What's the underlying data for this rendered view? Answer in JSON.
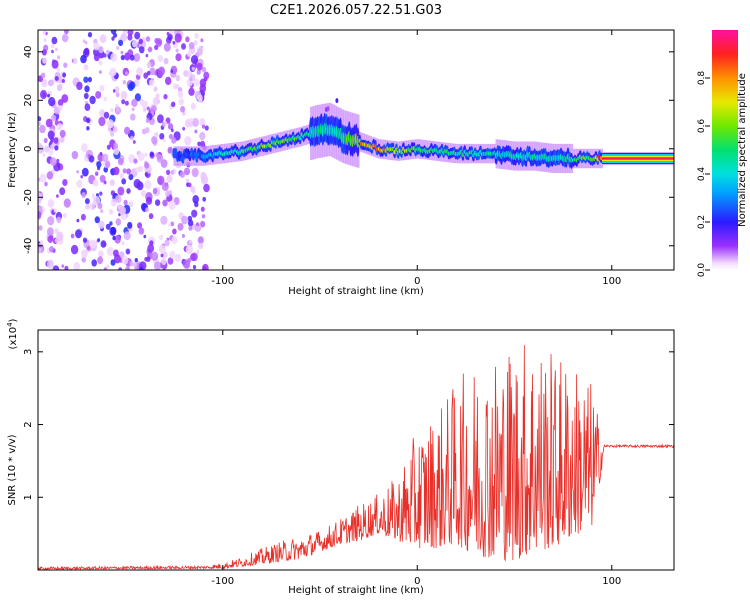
{
  "title": "C2E1.2026.057.22.51.G03",
  "chart_data": [
    {
      "type": "heatmap",
      "panel": "spectrogram",
      "xlabel": "Height of straight line (km)",
      "ylabel": "Frequency (Hz)",
      "xlim": [
        -195,
        132
      ],
      "ylim": [
        -50,
        49
      ],
      "xticks": [
        {
          "value": -100,
          "label": "-100"
        },
        {
          "value": 0,
          "label": "0"
        },
        {
          "value": 100,
          "label": "100"
        }
      ],
      "yticks": [
        {
          "value": -40,
          "label": "-40"
        },
        {
          "value": -20,
          "label": "-20"
        },
        {
          "value": 0,
          "label": "0"
        },
        {
          "value": 20,
          "label": "20"
        },
        {
          "value": 40,
          "label": "40"
        }
      ],
      "noise_region_x": [
        -195,
        -108
      ],
      "signal_region_x": [
        -125,
        95
      ],
      "clean_tone_region_x": [
        95,
        132
      ],
      "ridge": {
        "x": [
          -125,
          -110,
          -100,
          -90,
          -80,
          -70,
          -60,
          -52,
          -45,
          -38,
          -30,
          -20,
          -10,
          0,
          10,
          20,
          30,
          40,
          50,
          60,
          70,
          80,
          90,
          95,
          132
        ],
        "freq": [
          -3,
          -3,
          -2,
          -1,
          1,
          3,
          5,
          7,
          8,
          5,
          3,
          0,
          -1,
          0,
          -1,
          -2,
          -2,
          -2,
          -3,
          -3,
          -4,
          -4,
          -4,
          -4,
          -4
        ],
        "amplitude": [
          0.25,
          0.3,
          0.45,
          0.55,
          0.6,
          0.6,
          0.55,
          0.5,
          0.45,
          0.6,
          0.75,
          0.85,
          0.7,
          0.6,
          0.55,
          0.5,
          0.5,
          0.45,
          0.45,
          0.45,
          0.45,
          0.5,
          0.6,
          0.95,
          0.95
        ]
      },
      "colorbar": {
        "label": "Normalized spectral amplitude",
        "range": [
          0,
          1
        ],
        "ticks": [
          {
            "value": 0.0,
            "label": "0.0"
          },
          {
            "value": 0.2,
            "label": "0.2"
          },
          {
            "value": 0.4,
            "label": "0.4"
          },
          {
            "value": 0.6,
            "label": "0.6"
          },
          {
            "value": 0.8,
            "label": "0.8"
          }
        ]
      }
    },
    {
      "type": "line",
      "panel": "snr",
      "xlabel": "Height of straight line (km)",
      "ylabel": "SNR (10 * v/v)",
      "scale_label_base": "(x10",
      "scale_label_exp": "4",
      "scale_label_end": ")",
      "xlim": [
        -195,
        132
      ],
      "ylim": [
        0,
        3.3
      ],
      "xticks": [
        {
          "value": -100,
          "label": "-100"
        },
        {
          "value": 0,
          "label": "0"
        },
        {
          "value": 100,
          "label": "100"
        }
      ],
      "yticks": [
        {
          "value": 1,
          "label": "1"
        },
        {
          "value": 2,
          "label": "2"
        },
        {
          "value": 3,
          "label": "3"
        }
      ],
      "series": [
        {
          "name": "SNR",
          "color": "#e8302a",
          "envelope_x": [
            -195,
            -110,
            -100,
            -90,
            -80,
            -70,
            -60,
            -50,
            -40,
            -30,
            -20,
            -10,
            0,
            10,
            20,
            30,
            40,
            50,
            60,
            70,
            80,
            90,
            95,
            96,
            132
          ],
          "envelope_upper": [
            0.04,
            0.06,
            0.1,
            0.18,
            0.3,
            0.4,
            0.48,
            0.55,
            0.7,
            0.9,
            1.05,
            1.3,
            1.95,
            2.2,
            2.6,
            2.9,
            3.05,
            3.2,
            3.3,
            3.0,
            2.9,
            2.6,
            1.85,
            1.72,
            1.72
          ],
          "envelope_lower": [
            0.01,
            0.02,
            0.02,
            0.05,
            0.08,
            0.12,
            0.15,
            0.25,
            0.35,
            0.4,
            0.5,
            0.4,
            0.3,
            0.3,
            0.35,
            0.2,
            0.15,
            0.12,
            0.25,
            0.3,
            0.45,
            0.6,
            1.4,
            1.67,
            1.67
          ]
        }
      ]
    }
  ]
}
